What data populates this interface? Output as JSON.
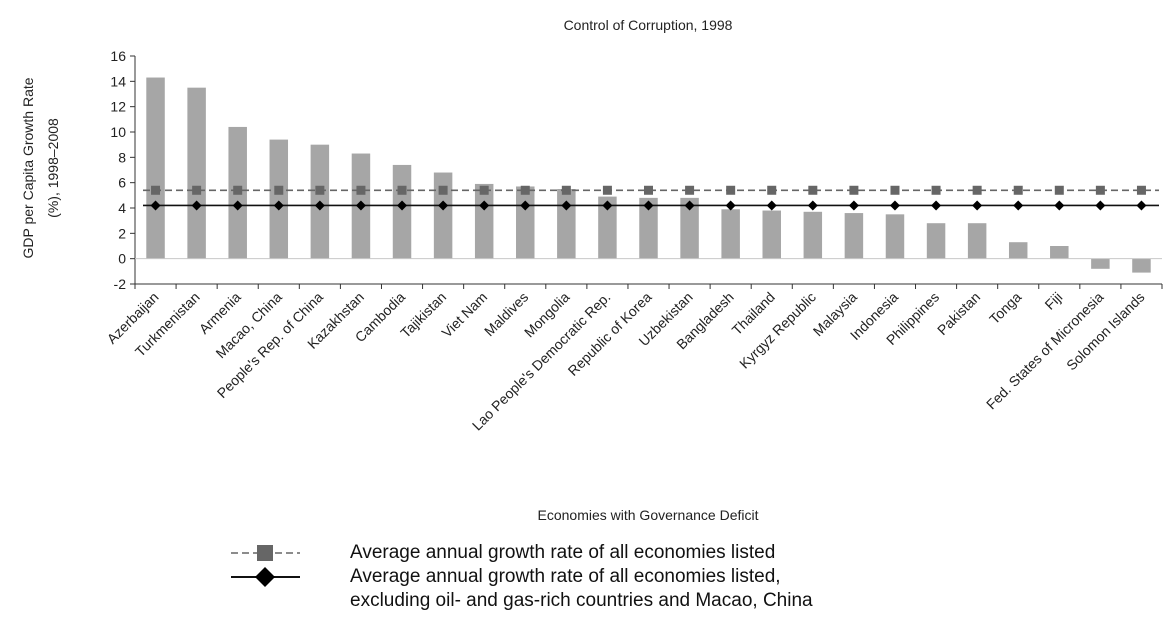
{
  "chart_data": {
    "type": "bar",
    "title": "Control of Corruption, 1998",
    "xlabel": "Economies with Governance Deficit",
    "ylabel_lines": [
      "GDP per Capita Growth Rate",
      "(%), 1998–2008"
    ],
    "ylim": [
      -2,
      16
    ],
    "yticks": [
      "16",
      "14",
      "12",
      "10",
      "8",
      "6",
      "4",
      "2",
      "0",
      "-2"
    ],
    "ytick_values": [
      16,
      14,
      12,
      10,
      8,
      6,
      4,
      2,
      0,
      -2
    ],
    "categories": [
      "Azerbaijan",
      "Turkmenistan",
      "Armenia",
      "Macao, China",
      "People's Rep. of China",
      "Kazakhstan",
      "Cambodia",
      "Tajikistan",
      "Viet Nam",
      "Maldives",
      "Mongolia",
      "Lao People's Democratic Rep.",
      "Republic of Korea",
      "Uzbekistan",
      "Bangladesh",
      "Thailand",
      "Kyrgyz Republic",
      "Malaysia",
      "Indonesia",
      "Philippines",
      "Pakistan",
      "Tonga",
      "Fiji",
      "Fed. States of Micronesia",
      "Solomon Islands"
    ],
    "values": [
      14.3,
      13.5,
      10.4,
      9.4,
      9.0,
      8.3,
      7.4,
      6.8,
      5.9,
      5.7,
      5.5,
      4.9,
      4.8,
      4.8,
      3.9,
      3.8,
      3.7,
      3.6,
      3.5,
      2.8,
      2.8,
      1.3,
      1.0,
      -0.8,
      -1.1
    ],
    "series": [
      {
        "name": "Average annual growth rate of all economies listed",
        "value": 5.4,
        "style": "dashed-square"
      },
      {
        "name": "Average annual growth rate of all economies listed, excluding oil- and gas-rich countries and Macao, China",
        "value": 4.2,
        "style": "solid-diamond"
      }
    ],
    "colors": {
      "bar": "#a6a6a6",
      "avg_all": "#666666",
      "avg_excl": "#111111",
      "axis": "#333333"
    },
    "grid": false,
    "legend_position": "bottom"
  },
  "legend": {
    "item1": "Average annual growth rate of all economies listed",
    "item2_line1": "Average annual growth rate of all economies listed,",
    "item2_line2": "excluding oil- and gas-rich countries and Macao, China"
  }
}
